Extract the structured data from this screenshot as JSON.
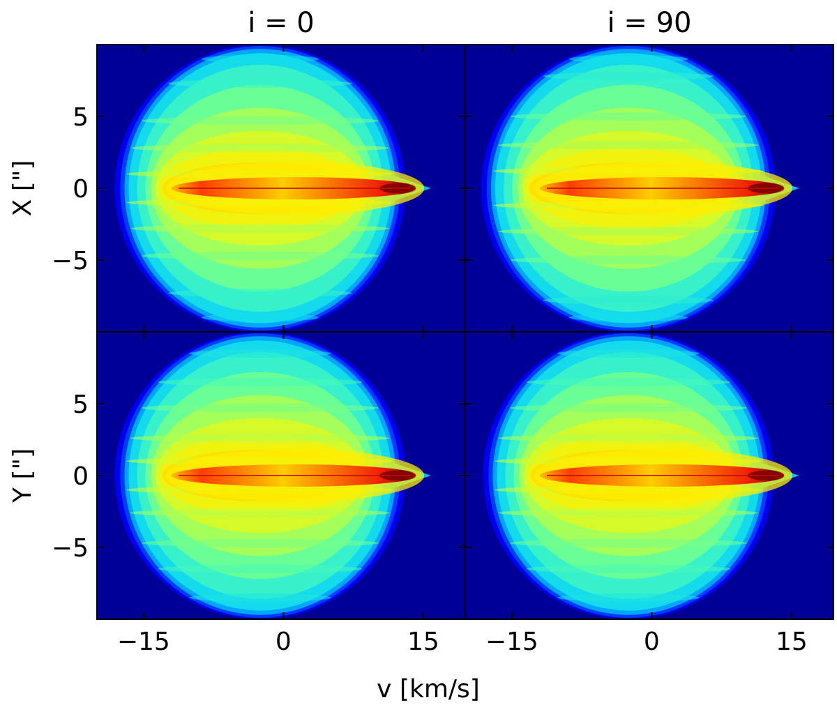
{
  "chart_data": {
    "type": "heatmap",
    "colormap": "jet",
    "layout": "2x2 grid, shared axes",
    "column_titles": [
      "i = 0",
      "i = 90"
    ],
    "xlabel": "v [km/s]",
    "ylabels": [
      "X [\"]",
      "Y [\"]"
    ],
    "xlim": [
      -20,
      19.5
    ],
    "ylim": [
      -10,
      10
    ],
    "xticks": [
      -15,
      0,
      15
    ],
    "xtick_labels": [
      "−15",
      "0",
      "15"
    ],
    "yticks": [
      -5,
      0,
      5
    ],
    "ytick_labels": [
      "−5",
      "0",
      "5"
    ],
    "grid": false,
    "panels": [
      {
        "row": "X",
        "column": "i = 0",
        "envelope": {
          "v_center": -2.5,
          "v_half_width": 15.0,
          "pos_half_height": 10.0,
          "tip_v": 15.8
        },
        "core": {
          "v_from": -12.0,
          "v_to": 14.5,
          "peak_v": 13.0,
          "pos": 0.0
        },
        "intensity_bands_pos": [
          0.0,
          1.0,
          2.8,
          4.7,
          7.3,
          9.0
        ]
      },
      {
        "row": "X",
        "column": "i = 90",
        "envelope": {
          "v_center": -2.5,
          "v_half_width": 15.2,
          "pos_half_height": 10.0,
          "tip_v": 15.8
        },
        "core": {
          "v_from": -12.0,
          "v_to": 14.5,
          "peak_v": 13.0,
          "pos": 0.0
        },
        "intensity_bands_pos": [
          0.0,
          1.2,
          3.0,
          5.0,
          7.8,
          9.0
        ]
      },
      {
        "row": "Y",
        "column": "i = 0",
        "envelope": {
          "v_center": -2.5,
          "v_half_width": 15.0,
          "pos_half_height": 10.0,
          "tip_v": 15.8
        },
        "core": {
          "v_from": -12.0,
          "v_to": 14.5,
          "peak_v": 13.0,
          "pos": 0.0
        },
        "intensity_bands_pos": [
          0.0,
          1.0,
          2.6,
          4.7,
          6.5,
          8.5
        ]
      },
      {
        "row": "Y",
        "column": "i = 90",
        "envelope": {
          "v_center": -2.5,
          "v_half_width": 15.0,
          "pos_half_height": 10.0,
          "tip_v": 15.8
        },
        "core": {
          "v_from": -12.0,
          "v_to": 14.5,
          "peak_v": 13.0,
          "pos": 0.0
        },
        "intensity_bands_pos": [
          0.0,
          1.0,
          2.6,
          4.7,
          6.5,
          8.5
        ]
      }
    ]
  }
}
